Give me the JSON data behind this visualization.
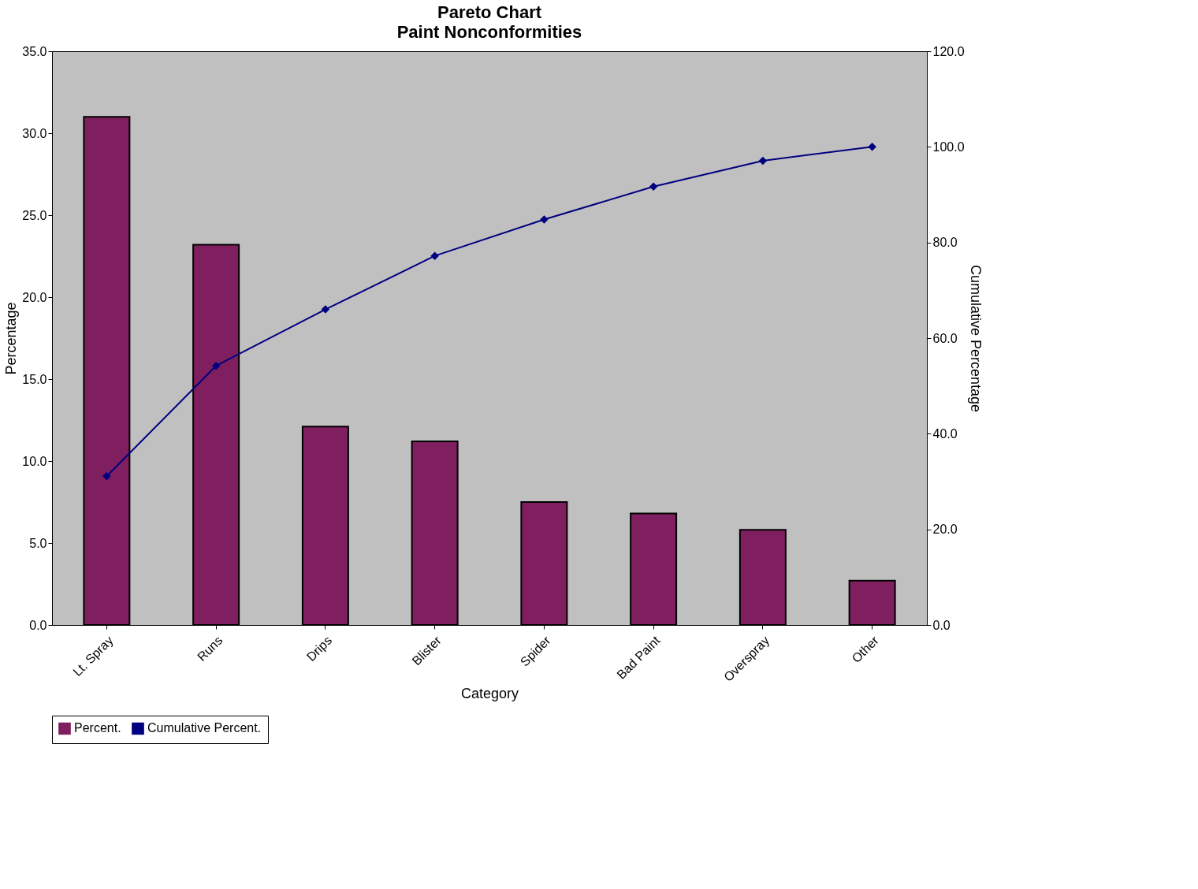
{
  "chart_data": {
    "type": "bar",
    "title": "Pareto Chart",
    "subtitle": "Paint Nonconformities",
    "xlabel": "Category",
    "ylabel": "Percentage",
    "y2label": "Cumulative Percentage",
    "categories": [
      "Lt. Spray",
      "Runs",
      "Drips",
      "Blister",
      "Spider",
      "Bad Paint",
      "Overspray",
      "Other"
    ],
    "series": [
      {
        "name": "Percent.",
        "color": "#7f1f5f",
        "values": [
          31.0,
          23.2,
          12.1,
          11.2,
          7.5,
          6.8,
          5.8,
          2.7
        ]
      },
      {
        "name": "Cumulative Percent.",
        "type": "line",
        "axis": "y2",
        "color": "#000080",
        "values": [
          31.1,
          54.2,
          66.0,
          77.2,
          84.8,
          91.7,
          97.1,
          100.0
        ]
      }
    ],
    "ylim": [
      0,
      35
    ],
    "yticks": [
      {
        "value": 0,
        "label": "0.0"
      },
      {
        "value": 5,
        "label": "5.0"
      },
      {
        "value": 10,
        "label": "10.0"
      },
      {
        "value": 15,
        "label": "15.0"
      },
      {
        "value": 20,
        "label": "20.0"
      },
      {
        "value": 25,
        "label": "25.0"
      },
      {
        "value": 30,
        "label": "30.0"
      },
      {
        "value": 35,
        "label": "35.0"
      }
    ],
    "y2lim": [
      0,
      120
    ],
    "y2ticks": [
      {
        "value": 0,
        "label": "0.0"
      },
      {
        "value": 20,
        "label": "20.0"
      },
      {
        "value": 40,
        "label": "40.0"
      },
      {
        "value": 60,
        "label": "60.0"
      },
      {
        "value": 80,
        "label": "80.0"
      },
      {
        "value": 100,
        "label": "100.0"
      },
      {
        "value": 120,
        "label": "120.0"
      }
    ],
    "grid": false,
    "legend": "bottom",
    "marker": "diamond",
    "line_style": "solid"
  }
}
